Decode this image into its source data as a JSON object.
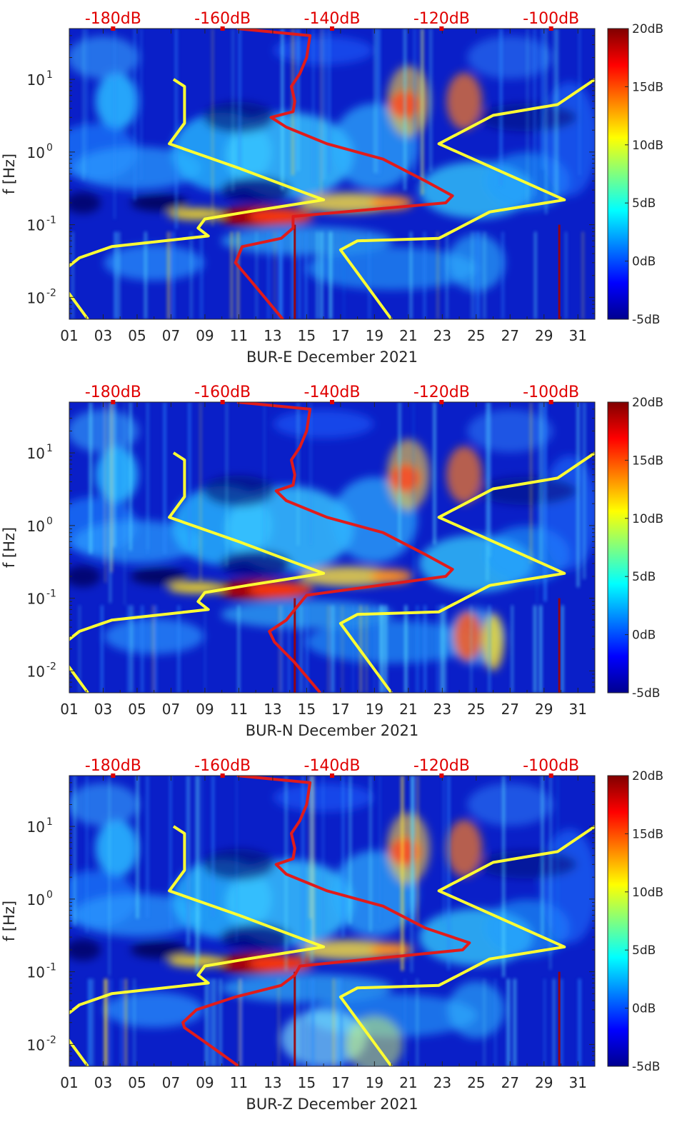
{
  "chart_data": [
    {
      "type": "heatmap",
      "title": "",
      "xlabel": "BUR-E December 2021",
      "ylabel": "f [Hz]",
      "x_ticks": [
        "01",
        "03",
        "05",
        "07",
        "09",
        "11",
        "13",
        "15",
        "17",
        "19",
        "21",
        "23",
        "25",
        "27",
        "29",
        "31"
      ],
      "x_range": [
        1,
        32
      ],
      "y_scale": "log",
      "y_range": [
        0.005,
        50
      ],
      "y_ticks": [
        {
          "value": 0.01,
          "label": "10",
          "exp": "-2"
        },
        {
          "value": 0.1,
          "label": "10",
          "exp": "-1"
        },
        {
          "value": 1,
          "label": "10",
          "exp": "0"
        },
        {
          "value": 10,
          "label": "10",
          "exp": "1"
        }
      ],
      "top_axis_labels": [
        "-180dB",
        "-160dB",
        "-140dB",
        "-120dB",
        "-100dB"
      ],
      "top_axis_range_db": [
        -188,
        -92
      ],
      "colorbar": {
        "ticks": [
          "20dB",
          "15dB",
          "10dB",
          "5dB",
          "0dB",
          "-5dB"
        ],
        "range_db": [
          -5,
          20
        ]
      },
      "series": [
        {
          "name": "PSD model (yellow)",
          "color": "#ffff33",
          "points": [
            [
              7.15,
              10
            ],
            [
              7.8,
              8
            ],
            [
              7.8,
              2.5
            ],
            [
              6.9,
              1.3
            ],
            [
              11,
              0.6
            ],
            [
              16,
              0.22
            ],
            [
              11.5,
              0.15
            ],
            [
              9,
              0.12
            ],
            [
              8.6,
              0.09
            ],
            [
              9.2,
              0.07
            ],
            [
              3.5,
              0.05
            ],
            [
              1.6,
              0.035
            ],
            [
              0.8,
              0.025
            ],
            [
              0.6,
              0.015
            ],
            [
              2.1,
              0.005
            ]
          ]
        },
        {
          "name": "PSD model 2 (yellow)",
          "color": "#ffff33",
          "points": [
            [
              20,
              0.005
            ],
            [
              17,
              0.045
            ],
            [
              18,
              0.06
            ],
            [
              22.8,
              0.065
            ],
            [
              25.8,
              0.15
            ],
            [
              30.2,
              0.22
            ],
            [
              22.8,
              1.3
            ],
            [
              26,
              3.2
            ],
            [
              29.8,
              4.5
            ],
            [
              32,
              10
            ]
          ]
        },
        {
          "name": "Noise floor (red)",
          "color": "#e01b1b",
          "points": [
            [
              13.6,
              0.005
            ],
            [
              11.7,
              0.017
            ],
            [
              10.8,
              0.03
            ],
            [
              11.2,
              0.05
            ],
            [
              13.5,
              0.065
            ],
            [
              14.2,
              0.09
            ],
            [
              14.2,
              0.13
            ],
            [
              23.2,
              0.2
            ],
            [
              23.6,
              0.25
            ],
            [
              22,
              0.4
            ],
            [
              19.5,
              0.8
            ],
            [
              16.2,
              1.3
            ],
            [
              13.8,
              2.2
            ],
            [
              12.9,
              3
            ],
            [
              14.2,
              3.6
            ],
            [
              14.3,
              5
            ],
            [
              14.1,
              8
            ],
            [
              14.6,
              12
            ],
            [
              15,
              20
            ],
            [
              15.2,
              40
            ],
            [
              10.9,
              50
            ]
          ]
        }
      ]
    },
    {
      "type": "heatmap",
      "title": "",
      "xlabel": "BUR-N December 2021",
      "ylabel": "f [Hz]",
      "x_ticks": [
        "01",
        "03",
        "05",
        "07",
        "09",
        "11",
        "13",
        "15",
        "17",
        "19",
        "21",
        "23",
        "25",
        "27",
        "29",
        "31"
      ],
      "x_range": [
        1,
        32
      ],
      "y_scale": "log",
      "y_range": [
        0.005,
        50
      ],
      "y_ticks": [
        {
          "value": 0.01,
          "label": "10",
          "exp": "-2"
        },
        {
          "value": 0.1,
          "label": "10",
          "exp": "-1"
        },
        {
          "value": 1,
          "label": "10",
          "exp": "0"
        },
        {
          "value": 10,
          "label": "10",
          "exp": "1"
        }
      ],
      "top_axis_labels": [
        "-180dB",
        "-160dB",
        "-140dB",
        "-120dB",
        "-100dB"
      ],
      "top_axis_range_db": [
        -188,
        -92
      ],
      "colorbar": {
        "ticks": [
          "20dB",
          "15dB",
          "10dB",
          "5dB",
          "0dB",
          "-5dB"
        ],
        "range_db": [
          -5,
          20
        ]
      },
      "series": [
        {
          "name": "PSD model (yellow)",
          "color": "#ffff33",
          "points": [
            [
              7.15,
              10
            ],
            [
              7.8,
              8
            ],
            [
              7.8,
              2.5
            ],
            [
              6.9,
              1.3
            ],
            [
              11,
              0.6
            ],
            [
              16,
              0.22
            ],
            [
              11.5,
              0.15
            ],
            [
              9,
              0.12
            ],
            [
              8.6,
              0.09
            ],
            [
              9.2,
              0.07
            ],
            [
              3.5,
              0.05
            ],
            [
              1.6,
              0.035
            ],
            [
              0.8,
              0.025
            ],
            [
              0.6,
              0.015
            ],
            [
              2.1,
              0.005
            ]
          ]
        },
        {
          "name": "PSD model 2 (yellow)",
          "color": "#ffff33",
          "points": [
            [
              20,
              0.005
            ],
            [
              17,
              0.045
            ],
            [
              18,
              0.06
            ],
            [
              22.8,
              0.065
            ],
            [
              25.8,
              0.15
            ],
            [
              30.2,
              0.22
            ],
            [
              22.8,
              1.3
            ],
            [
              26,
              3.2
            ],
            [
              29.8,
              4.5
            ],
            [
              32,
              10
            ]
          ]
        },
        {
          "name": "Noise floor (red)",
          "color": "#e01b1b",
          "points": [
            [
              15.8,
              0.005
            ],
            [
              14.3,
              0.013
            ],
            [
              13.1,
              0.025
            ],
            [
              12.8,
              0.035
            ],
            [
              13.8,
              0.05
            ],
            [
              14.3,
              0.07
            ],
            [
              15,
              0.11
            ],
            [
              23.2,
              0.2
            ],
            [
              23.6,
              0.25
            ],
            [
              22,
              0.4
            ],
            [
              19.5,
              0.8
            ],
            [
              16.2,
              1.3
            ],
            [
              13.8,
              2.2
            ],
            [
              13.2,
              3
            ],
            [
              14.2,
              3.6
            ],
            [
              14.3,
              5
            ],
            [
              14.1,
              8
            ],
            [
              14.6,
              12
            ],
            [
              15,
              20
            ],
            [
              15.2,
              40
            ],
            [
              10.9,
              50
            ]
          ]
        }
      ]
    },
    {
      "type": "heatmap",
      "title": "",
      "xlabel": "BUR-Z December 2021",
      "ylabel": "f [Hz]",
      "x_ticks": [
        "01",
        "03",
        "05",
        "07",
        "09",
        "11",
        "13",
        "15",
        "17",
        "19",
        "21",
        "23",
        "25",
        "27",
        "29",
        "31"
      ],
      "x_range": [
        1,
        32
      ],
      "y_scale": "log",
      "y_range": [
        0.005,
        50
      ],
      "y_ticks": [
        {
          "value": 0.01,
          "label": "10",
          "exp": "-2"
        },
        {
          "value": 0.1,
          "label": "10",
          "exp": "-1"
        },
        {
          "value": 1,
          "label": "10",
          "exp": "0"
        },
        {
          "value": 10,
          "label": "10",
          "exp": "1"
        }
      ],
      "top_axis_labels": [
        "-180dB",
        "-160dB",
        "-140dB",
        "-120dB",
        "-100dB"
      ],
      "top_axis_range_db": [
        -188,
        -92
      ],
      "colorbar": {
        "ticks": [
          "20dB",
          "15dB",
          "10dB",
          "5dB",
          "0dB",
          "-5dB"
        ],
        "range_db": [
          -5,
          20
        ]
      },
      "series": [
        {
          "name": "PSD model (yellow)",
          "color": "#ffff33",
          "points": [
            [
              7.15,
              10
            ],
            [
              7.8,
              8
            ],
            [
              7.8,
              2.5
            ],
            [
              6.9,
              1.3
            ],
            [
              11,
              0.6
            ],
            [
              16,
              0.22
            ],
            [
              11.5,
              0.15
            ],
            [
              9,
              0.12
            ],
            [
              8.6,
              0.09
            ],
            [
              9.2,
              0.07
            ],
            [
              3.5,
              0.05
            ],
            [
              1.6,
              0.035
            ],
            [
              0.8,
              0.025
            ],
            [
              0.6,
              0.015
            ],
            [
              2.1,
              0.005
            ]
          ]
        },
        {
          "name": "PSD model 2 (yellow)",
          "color": "#ffff33",
          "points": [
            [
              20,
              0.005
            ],
            [
              17,
              0.045
            ],
            [
              18,
              0.06
            ],
            [
              22.8,
              0.065
            ],
            [
              25.8,
              0.15
            ],
            [
              30.2,
              0.22
            ],
            [
              22.8,
              1.3
            ],
            [
              26,
              3.2
            ],
            [
              29.8,
              4.5
            ],
            [
              32,
              10
            ]
          ]
        },
        {
          "name": "Noise floor (red)",
          "color": "#e01b1b",
          "points": [
            [
              11,
              0.005
            ],
            [
              9.2,
              0.01
            ],
            [
              7.8,
              0.017
            ],
            [
              7.7,
              0.02
            ],
            [
              8.5,
              0.03
            ],
            [
              10.8,
              0.045
            ],
            [
              13.5,
              0.065
            ],
            [
              14.3,
              0.09
            ],
            [
              14.6,
              0.12
            ],
            [
              24.2,
              0.2
            ],
            [
              24.6,
              0.25
            ],
            [
              22,
              0.4
            ],
            [
              19.5,
              0.8
            ],
            [
              16.2,
              1.3
            ],
            [
              13.8,
              2.2
            ],
            [
              13.2,
              3
            ],
            [
              14.2,
              3.6
            ],
            [
              14.3,
              5
            ],
            [
              14.1,
              8
            ],
            [
              14.6,
              12
            ],
            [
              15,
              20
            ],
            [
              15.2,
              40
            ],
            [
              10.9,
              50
            ]
          ]
        }
      ]
    }
  ]
}
